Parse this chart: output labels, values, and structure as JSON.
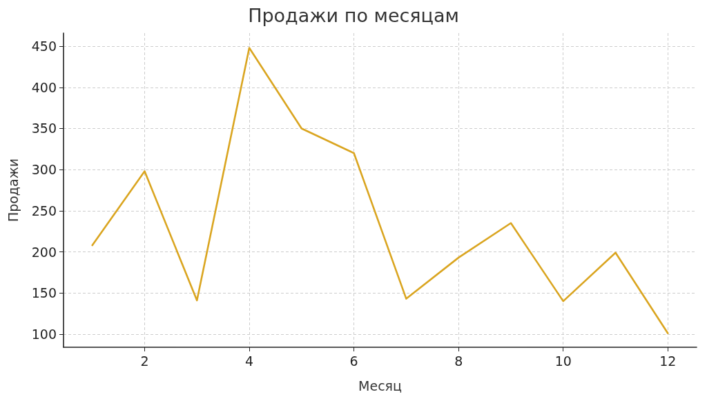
{
  "chart_data": {
    "type": "line",
    "title": "Продажи по месяцам",
    "xlabel": "Месяц",
    "ylabel": "Продажи",
    "x": [
      1,
      2,
      3,
      4,
      5,
      6,
      7,
      8,
      9,
      10,
      11,
      12
    ],
    "series": [
      {
        "color": "#daa520",
        "values": [
          208,
          298,
          141,
          448,
          350,
          320,
          143,
          193,
          235,
          140,
          199,
          101
        ]
      }
    ],
    "xlim": [
      0.45,
      12.55
    ],
    "xticks": [
      2,
      4,
      6,
      8,
      10,
      12
    ],
    "ylim": [
      84,
      466
    ],
    "yticks": [
      100,
      150,
      200,
      250,
      300,
      350,
      400,
      450
    ],
    "grid": true,
    "marker": "none",
    "line_style": "solid"
  }
}
